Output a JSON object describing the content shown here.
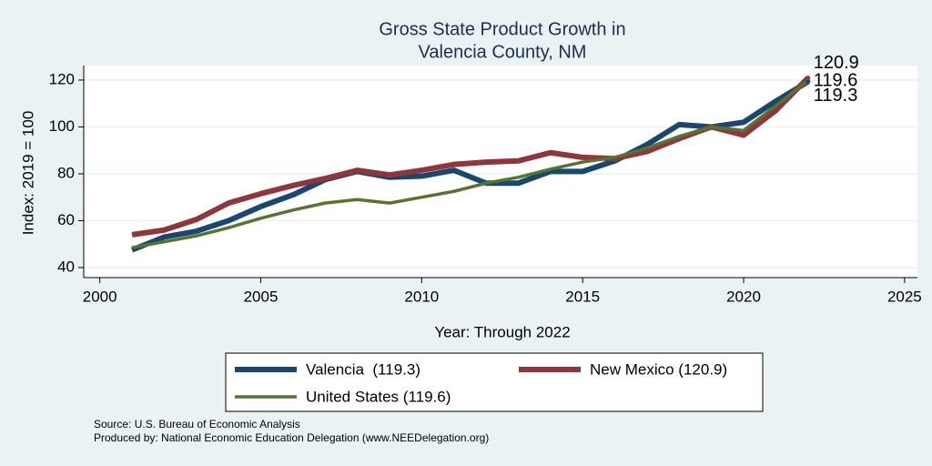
{
  "chart_data": {
    "type": "line",
    "title": [
      "Gross State Product Growth in",
      "Valencia County, NM"
    ],
    "x_label": "Year: Through 2022",
    "y_label": "Index: 2019 = 100",
    "x": [
      2001,
      2002,
      2003,
      2004,
      2005,
      2006,
      2007,
      2008,
      2009,
      2010,
      2011,
      2012,
      2013,
      2014,
      2015,
      2016,
      2017,
      2018,
      2019,
      2020,
      2021,
      2022
    ],
    "series": [
      {
        "name": "Valencia  (119.3)",
        "color": "#1a476f",
        "values": [
          47.5,
          53,
          55.5,
          60,
          66,
          71,
          77.5,
          81,
          78.5,
          79,
          81.5,
          76,
          76,
          81,
          81,
          85.5,
          92.5,
          101,
          100,
          102,
          111,
          119.3
        ]
      },
      {
        "name": "New Mexico (120.9)",
        "color": "#90353b",
        "values": [
          54,
          56,
          60.5,
          67.5,
          71.5,
          75,
          78,
          81.5,
          79.5,
          81.5,
          84,
          85,
          85.5,
          89,
          87,
          86.5,
          89.5,
          95,
          100,
          96.5,
          107,
          120.9
        ]
      },
      {
        "name": "United States (119.6)",
        "color": "#55752f",
        "values": [
          48.5,
          51,
          53.5,
          57,
          61,
          64.5,
          67.5,
          69,
          67.5,
          70,
          72.5,
          76,
          78.5,
          82,
          85,
          87,
          91,
          96,
          100,
          98.5,
          109,
          119.6
        ]
      }
    ],
    "xlim": [
      1999.5,
      2025.4
    ],
    "ylim": [
      35.7,
      126.2
    ],
    "xticks": [
      2000,
      2005,
      2010,
      2015,
      2020,
      2025
    ],
    "yticks": [
      40,
      60,
      80,
      100,
      120
    ],
    "grid": true,
    "notes": [
      "Source: U.S. Bureau of Economic Analysis",
      "Produced by: National Economic Education Delegation (www.NEEDelegation.org)"
    ]
  }
}
